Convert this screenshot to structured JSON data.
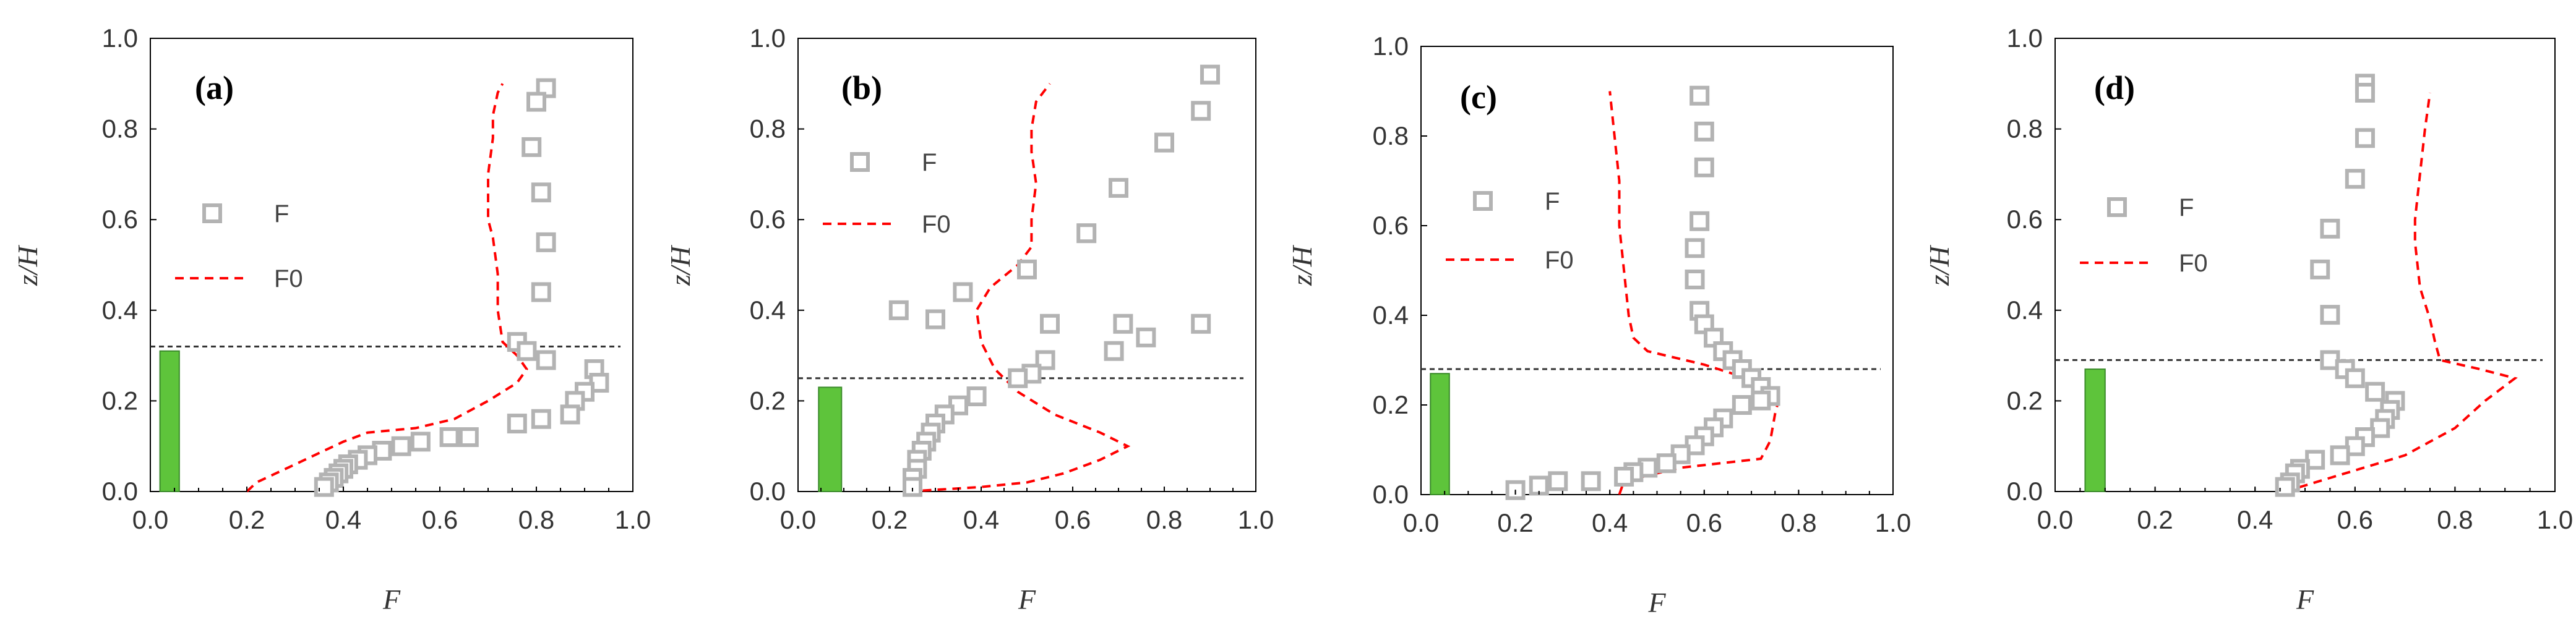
{
  "colors": {
    "marker": "#b3b3b3",
    "line": "#ff0000",
    "bar": "#5ec43b",
    "bar_edge": "#3a8a2a",
    "dash": "#333333",
    "axis": "#000000",
    "text": "#333333"
  },
  "chart_data": [
    {
      "type": "scatter",
      "panel_label": "(a)",
      "xlabel": "F",
      "ylabel": "z/H",
      "xlim": [
        0,
        1
      ],
      "ylim": [
        0,
        1
      ],
      "x_ticks": [
        "0.0",
        "0.2",
        "0.4",
        "0.6",
        "0.8",
        "1.0"
      ],
      "y_ticks": [
        "0.0",
        "0.2",
        "0.4",
        "0.6",
        "0.8",
        "1.0"
      ],
      "legend": [
        "F",
        "F0"
      ],
      "hline_y": 0.32,
      "bar": {
        "x_center": 0.04,
        "width": 0.04,
        "height": 0.31
      },
      "series": [
        {
          "name": "F",
          "style": "hollow-square",
          "points": [
            [
              0.82,
              0.89
            ],
            [
              0.8,
              0.86
            ],
            [
              0.79,
              0.76
            ],
            [
              0.81,
              0.66
            ],
            [
              0.82,
              0.55
            ],
            [
              0.81,
              0.44
            ],
            [
              0.76,
              0.33
            ],
            [
              0.78,
              0.31
            ],
            [
              0.82,
              0.29
            ],
            [
              0.92,
              0.27
            ],
            [
              0.93,
              0.24
            ],
            [
              0.9,
              0.22
            ],
            [
              0.88,
              0.2
            ],
            [
              0.87,
              0.17
            ],
            [
              0.81,
              0.16
            ],
            [
              0.76,
              0.15
            ],
            [
              0.66,
              0.12
            ],
            [
              0.62,
              0.12
            ],
            [
              0.56,
              0.11
            ],
            [
              0.52,
              0.1
            ],
            [
              0.48,
              0.09
            ],
            [
              0.45,
              0.08
            ],
            [
              0.43,
              0.07
            ],
            [
              0.41,
              0.06
            ],
            [
              0.4,
              0.05
            ],
            [
              0.39,
              0.04
            ],
            [
              0.38,
              0.03
            ],
            [
              0.37,
              0.02
            ],
            [
              0.36,
              0.01
            ]
          ]
        },
        {
          "name": "F0",
          "style": "dashed-line",
          "points": [
            [
              0.2,
              0.0
            ],
            [
              0.22,
              0.02
            ],
            [
              0.28,
              0.05
            ],
            [
              0.34,
              0.08
            ],
            [
              0.4,
              0.11
            ],
            [
              0.45,
              0.13
            ],
            [
              0.55,
              0.14
            ],
            [
              0.63,
              0.16
            ],
            [
              0.7,
              0.2
            ],
            [
              0.76,
              0.24
            ],
            [
              0.78,
              0.27
            ],
            [
              0.76,
              0.3
            ],
            [
              0.73,
              0.33
            ],
            [
              0.72,
              0.4
            ],
            [
              0.72,
              0.48
            ],
            [
              0.71,
              0.56
            ],
            [
              0.7,
              0.6
            ],
            [
              0.7,
              0.7
            ],
            [
              0.71,
              0.78
            ],
            [
              0.71,
              0.83
            ],
            [
              0.72,
              0.88
            ],
            [
              0.73,
              0.9
            ]
          ]
        }
      ]
    },
    {
      "type": "scatter",
      "panel_label": "(b)",
      "xlabel": "F",
      "ylabel": "z/H",
      "xlim": [
        0,
        1
      ],
      "ylim": [
        0,
        1
      ],
      "x_ticks": [
        "0.0",
        "0.2",
        "0.4",
        "0.6",
        "0.8",
        "1.0"
      ],
      "y_ticks": [
        "0.0",
        "0.2",
        "0.4",
        "0.6",
        "0.8",
        "1.0"
      ],
      "legend": [
        "F",
        "F0"
      ],
      "hline_y": 0.25,
      "bar": {
        "x_center": 0.07,
        "width": 0.05,
        "height": 0.23
      },
      "series": [
        {
          "name": "F",
          "style": "hollow-square",
          "points": [
            [
              0.9,
              0.92
            ],
            [
              0.88,
              0.84
            ],
            [
              0.8,
              0.77
            ],
            [
              0.7,
              0.67
            ],
            [
              0.63,
              0.57
            ],
            [
              0.5,
              0.49
            ],
            [
              0.36,
              0.44
            ],
            [
              0.22,
              0.4
            ],
            [
              0.3,
              0.38
            ],
            [
              0.55,
              0.37
            ],
            [
              0.71,
              0.37
            ],
            [
              0.88,
              0.37
            ],
            [
              0.76,
              0.34
            ],
            [
              0.69,
              0.31
            ],
            [
              0.54,
              0.29
            ],
            [
              0.51,
              0.26
            ],
            [
              0.48,
              0.25
            ],
            [
              0.39,
              0.21
            ],
            [
              0.35,
              0.19
            ],
            [
              0.32,
              0.17
            ],
            [
              0.3,
              0.15
            ],
            [
              0.29,
              0.13
            ],
            [
              0.28,
              0.11
            ],
            [
              0.27,
              0.09
            ],
            [
              0.26,
              0.07
            ],
            [
              0.26,
              0.05
            ],
            [
              0.25,
              0.03
            ],
            [
              0.25,
              0.01
            ]
          ]
        },
        {
          "name": "F0",
          "style": "dashed-line",
          "points": [
            [
              0.24,
              0.0
            ],
            [
              0.4,
              0.01
            ],
            [
              0.5,
              0.02
            ],
            [
              0.58,
              0.04
            ],
            [
              0.66,
              0.07
            ],
            [
              0.72,
              0.1
            ],
            [
              0.66,
              0.13
            ],
            [
              0.56,
              0.17
            ],
            [
              0.48,
              0.22
            ],
            [
              0.43,
              0.27
            ],
            [
              0.4,
              0.33
            ],
            [
              0.39,
              0.4
            ],
            [
              0.42,
              0.45
            ],
            [
              0.48,
              0.5
            ],
            [
              0.51,
              0.54
            ],
            [
              0.51,
              0.6
            ],
            [
              0.52,
              0.68
            ],
            [
              0.51,
              0.75
            ],
            [
              0.51,
              0.8
            ],
            [
              0.52,
              0.86
            ],
            [
              0.55,
              0.9
            ]
          ]
        }
      ]
    },
    {
      "type": "scatter",
      "panel_label": "(c)",
      "xlabel": "F",
      "ylabel": "z/H",
      "xlim": [
        0,
        1
      ],
      "ylim": [
        0,
        1
      ],
      "x_ticks": [
        "0.0",
        "0.2",
        "0.4",
        "0.6",
        "0.8",
        "1.0"
      ],
      "y_ticks": [
        "0.0",
        "0.2",
        "0.4",
        "0.6",
        "0.8",
        "1.0"
      ],
      "legend": [
        "F",
        "F0"
      ],
      "hline_y": 0.28,
      "bar": {
        "x_center": 0.04,
        "width": 0.04,
        "height": 0.27
      },
      "series": [
        {
          "name": "F",
          "style": "hollow-square",
          "points": [
            [
              0.59,
              0.89
            ],
            [
              0.6,
              0.81
            ],
            [
              0.6,
              0.73
            ],
            [
              0.59,
              0.61
            ],
            [
              0.58,
              0.55
            ],
            [
              0.58,
              0.48
            ],
            [
              0.59,
              0.41
            ],
            [
              0.6,
              0.38
            ],
            [
              0.62,
              0.35
            ],
            [
              0.64,
              0.32
            ],
            [
              0.66,
              0.3
            ],
            [
              0.68,
              0.28
            ],
            [
              0.7,
              0.26
            ],
            [
              0.72,
              0.24
            ],
            [
              0.74,
              0.22
            ],
            [
              0.72,
              0.21
            ],
            [
              0.68,
              0.2
            ],
            [
              0.64,
              0.17
            ],
            [
              0.62,
              0.15
            ],
            [
              0.6,
              0.13
            ],
            [
              0.58,
              0.11
            ],
            [
              0.55,
              0.09
            ],
            [
              0.52,
              0.07
            ],
            [
              0.48,
              0.06
            ],
            [
              0.45,
              0.05
            ],
            [
              0.43,
              0.04
            ],
            [
              0.36,
              0.03
            ],
            [
              0.29,
              0.03
            ],
            [
              0.25,
              0.02
            ],
            [
              0.2,
              0.01
            ]
          ]
        },
        {
          "name": "F0",
          "style": "dashed-line",
          "points": [
            [
              0.42,
              0.0
            ],
            [
              0.43,
              0.03
            ],
            [
              0.55,
              0.06
            ],
            [
              0.72,
              0.08
            ],
            [
              0.74,
              0.12
            ],
            [
              0.75,
              0.18
            ],
            [
              0.76,
              0.22
            ],
            [
              0.72,
              0.25
            ],
            [
              0.6,
              0.29
            ],
            [
              0.48,
              0.32
            ],
            [
              0.45,
              0.35
            ],
            [
              0.44,
              0.4
            ],
            [
              0.43,
              0.5
            ],
            [
              0.42,
              0.6
            ],
            [
              0.42,
              0.7
            ],
            [
              0.41,
              0.8
            ],
            [
              0.4,
              0.9
            ]
          ]
        }
      ]
    },
    {
      "type": "scatter",
      "panel_label": "(d)",
      "xlabel": "F",
      "ylabel": "z/H",
      "xlim": [
        0,
        1
      ],
      "ylim": [
        0,
        1
      ],
      "x_ticks": [
        "0.0",
        "0.2",
        "0.4",
        "0.6",
        "0.8",
        "1.0"
      ],
      "y_ticks": [
        "0.0",
        "0.2",
        "0.4",
        "0.6",
        "0.8",
        "1.0"
      ],
      "legend": [
        "F",
        "F0"
      ],
      "hline_y": 0.29,
      "bar": {
        "x_center": 0.08,
        "width": 0.04,
        "height": 0.27
      },
      "series": [
        {
          "name": "F",
          "style": "hollow-square",
          "points": [
            [
              0.62,
              0.9
            ],
            [
              0.62,
              0.88
            ],
            [
              0.62,
              0.78
            ],
            [
              0.6,
              0.69
            ],
            [
              0.55,
              0.58
            ],
            [
              0.53,
              0.49
            ],
            [
              0.55,
              0.39
            ],
            [
              0.55,
              0.29
            ],
            [
              0.58,
              0.27
            ],
            [
              0.6,
              0.25
            ],
            [
              0.64,
              0.22
            ],
            [
              0.68,
              0.2
            ],
            [
              0.67,
              0.18
            ],
            [
              0.66,
              0.16
            ],
            [
              0.65,
              0.14
            ],
            [
              0.62,
              0.12
            ],
            [
              0.6,
              0.1
            ],
            [
              0.57,
              0.08
            ],
            [
              0.52,
              0.07
            ],
            [
              0.49,
              0.05
            ],
            [
              0.48,
              0.04
            ],
            [
              0.47,
              0.02
            ],
            [
              0.46,
              0.01
            ]
          ]
        },
        {
          "name": "F0",
          "style": "dashed-line",
          "points": [
            [
              0.46,
              0.0
            ],
            [
              0.55,
              0.03
            ],
            [
              0.7,
              0.08
            ],
            [
              0.8,
              0.14
            ],
            [
              0.86,
              0.2
            ],
            [
              0.92,
              0.25
            ],
            [
              0.85,
              0.27
            ],
            [
              0.77,
              0.29
            ],
            [
              0.76,
              0.33
            ],
            [
              0.75,
              0.38
            ],
            [
              0.73,
              0.45
            ],
            [
              0.72,
              0.55
            ],
            [
              0.72,
              0.6
            ],
            [
              0.73,
              0.7
            ],
            [
              0.74,
              0.8
            ],
            [
              0.75,
              0.88
            ]
          ]
        }
      ]
    }
  ]
}
